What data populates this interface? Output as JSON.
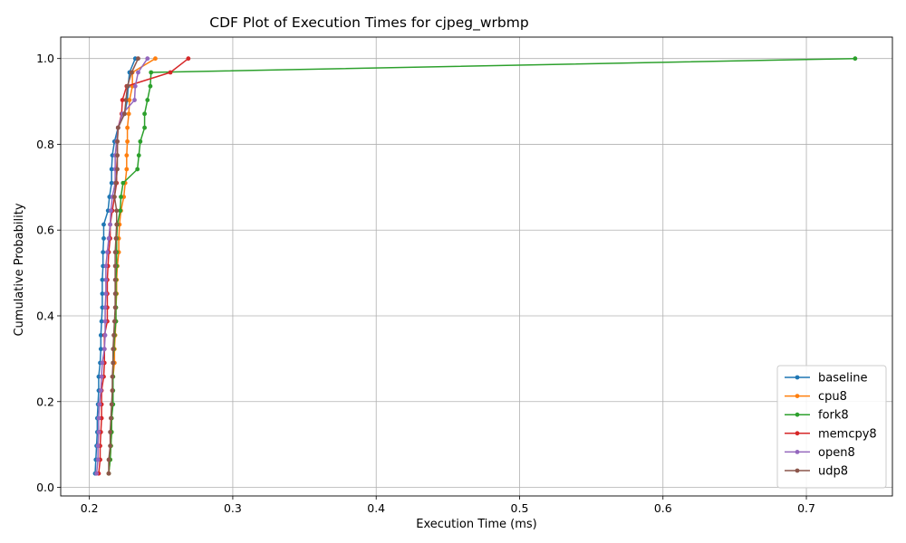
{
  "chart_data": {
    "type": "line",
    "title": "CDF Plot of Execution Times for cjpeg_wrbmp",
    "xlabel": "Execution Time (ms)",
    "ylabel": "Cumulative Probability",
    "xlim": [
      0.18,
      0.76
    ],
    "ylim": [
      -0.02,
      1.05
    ],
    "xticks": [
      0.2,
      0.3,
      0.4,
      0.5,
      0.6,
      0.7
    ],
    "xtick_labels": [
      "0.2",
      "0.3",
      "0.4",
      "0.5",
      "0.6",
      "0.7"
    ],
    "yticks": [
      0.0,
      0.2,
      0.4,
      0.6,
      0.8,
      1.0
    ],
    "ytick_labels": [
      "0.0",
      "0.2",
      "0.4",
      "0.6",
      "0.8",
      "1.0"
    ],
    "grid": true,
    "legend_position": "lower-right",
    "y": [
      0.0323,
      0.0645,
      0.0968,
      0.129,
      0.1613,
      0.1935,
      0.2258,
      0.2581,
      0.2903,
      0.3226,
      0.3548,
      0.3871,
      0.4194,
      0.4516,
      0.4839,
      0.5161,
      0.5484,
      0.5806,
      0.6129,
      0.6452,
      0.6774,
      0.7097,
      0.7419,
      0.7742,
      0.8065,
      0.8387,
      0.871,
      0.9032,
      0.9355,
      0.9677,
      1.0
    ],
    "series": [
      {
        "name": "baseline",
        "color": "#1f77b4",
        "x": [
          0.204,
          0.2045,
          0.205,
          0.2055,
          0.2055,
          0.206,
          0.2065,
          0.2065,
          0.2075,
          0.208,
          0.208,
          0.2085,
          0.209,
          0.209,
          0.209,
          0.2095,
          0.2095,
          0.21,
          0.21,
          0.213,
          0.214,
          0.2155,
          0.2155,
          0.216,
          0.2175,
          0.22,
          0.2245,
          0.2265,
          0.227,
          0.228,
          0.232
        ]
      },
      {
        "name": "cpu8",
        "color": "#ff7f0e",
        "x": [
          0.2135,
          0.2145,
          0.215,
          0.2155,
          0.2155,
          0.216,
          0.216,
          0.2165,
          0.2175,
          0.2175,
          0.218,
          0.2185,
          0.2185,
          0.219,
          0.219,
          0.2195,
          0.2205,
          0.2205,
          0.221,
          0.222,
          0.224,
          0.225,
          0.226,
          0.226,
          0.2265,
          0.2265,
          0.2275,
          0.228,
          0.23,
          0.23,
          0.246
        ]
      },
      {
        "name": "fork8",
        "color": "#2ca02c",
        "x": [
          0.2135,
          0.2145,
          0.215,
          0.2155,
          0.2155,
          0.2165,
          0.2165,
          0.2165,
          0.2165,
          0.217,
          0.2175,
          0.2185,
          0.2185,
          0.2185,
          0.2185,
          0.219,
          0.219,
          0.219,
          0.2195,
          0.2215,
          0.222,
          0.2235,
          0.2335,
          0.2345,
          0.2355,
          0.2385,
          0.2385,
          0.2405,
          0.2425,
          0.243,
          0.734
        ]
      },
      {
        "name": "memcpy8",
        "color": "#d62728",
        "x": [
          0.2065,
          0.2075,
          0.2075,
          0.208,
          0.2085,
          0.2085,
          0.2085,
          0.21,
          0.2105,
          0.2105,
          0.2105,
          0.2125,
          0.2125,
          0.2125,
          0.2125,
          0.213,
          0.2135,
          0.2145,
          0.2145,
          0.216,
          0.2175,
          0.219,
          0.219,
          0.2195,
          0.2195,
          0.22,
          0.2225,
          0.223,
          0.226,
          0.2565,
          0.269
        ]
      },
      {
        "name": "open8",
        "color": "#9467bd",
        "x": [
          0.205,
          0.206,
          0.206,
          0.2065,
          0.2065,
          0.207,
          0.208,
          0.2085,
          0.209,
          0.2105,
          0.211,
          0.211,
          0.211,
          0.2115,
          0.2115,
          0.2115,
          0.2125,
          0.2135,
          0.2145,
          0.215,
          0.216,
          0.218,
          0.218,
          0.218,
          0.219,
          0.22,
          0.223,
          0.2315,
          0.232,
          0.234,
          0.2405
        ]
      },
      {
        "name": "udp8",
        "color": "#8c564b",
        "x": [
          0.2135,
          0.2135,
          0.2145,
          0.2145,
          0.215,
          0.2155,
          0.216,
          0.216,
          0.2165,
          0.2165,
          0.217,
          0.2175,
          0.218,
          0.218,
          0.218,
          0.218,
          0.218,
          0.2185,
          0.219,
          0.219,
          0.2175,
          0.2185,
          0.2195,
          0.2195,
          0.2195,
          0.22,
          0.2245,
          0.2255,
          0.2265,
          0.2295,
          0.234
        ]
      }
    ]
  }
}
